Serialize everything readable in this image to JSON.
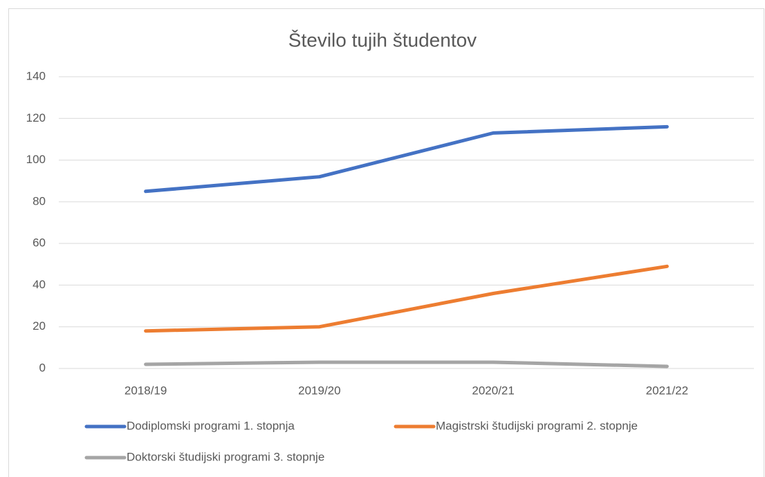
{
  "chart_data": {
    "type": "line",
    "title": "Število tujih študentov",
    "categories": [
      "2018/19",
      "2019/20",
      "2020/21",
      "2021/22"
    ],
    "series": [
      {
        "name": "Dodiplomski programi 1. stopnja",
        "color": "#4472c4",
        "values": [
          85,
          92,
          113,
          116
        ]
      },
      {
        "name": "Magistrski študijski programi 2. stopnje",
        "color": "#ed7d31",
        "values": [
          18,
          20,
          36,
          49
        ]
      },
      {
        "name": "Doktorski študijski programi 3. stopnje",
        "color": "#a5a5a5",
        "values": [
          2,
          3,
          3,
          1
        ]
      }
    ],
    "ylim": [
      0,
      140
    ],
    "yticks": [
      0,
      20,
      40,
      60,
      80,
      100,
      120,
      140
    ],
    "grid": true,
    "legend": "bottom"
  }
}
